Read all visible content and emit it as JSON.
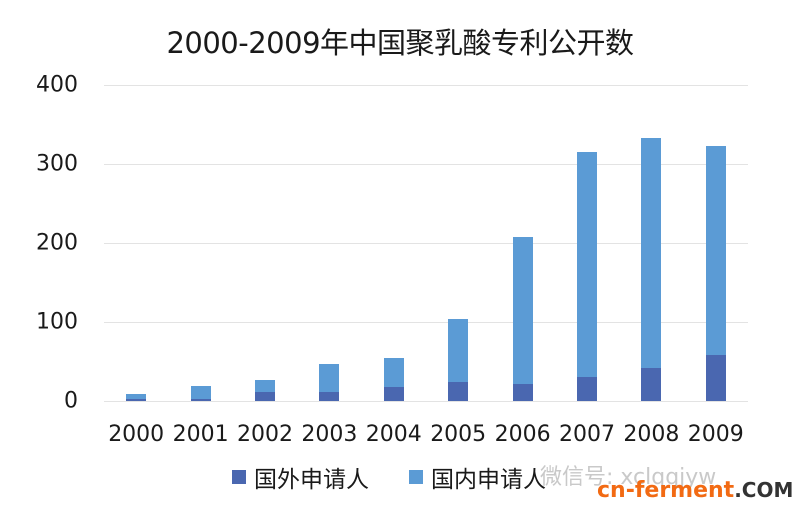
{
  "title": "2000-2009年中国聚乳酸专利公开数",
  "colors": {
    "foreign": "#4a67b0",
    "domestic": "#5b9bd5",
    "grid": "#e3e3e3",
    "watermark_orange": "#f26a13"
  },
  "legend": [
    {
      "label": "国外申请人",
      "color": "#4a67b0"
    },
    {
      "label": "国内申请人",
      "color": "#5b9bd5"
    }
  ],
  "watermark": {
    "wechat": "微信号: xclqqjyw",
    "site_main": "cn-ferment",
    "site_tld": ".COM"
  },
  "y_ticks": [
    "0",
    "100",
    "200",
    "300",
    "400"
  ],
  "chart_data": {
    "type": "bar",
    "stacked": true,
    "title": "2000-2009年中国聚乳酸专利公开数",
    "xlabel": "",
    "ylabel": "",
    "ylim": [
      0,
      400
    ],
    "yticks": [
      0,
      100,
      200,
      300,
      400
    ],
    "grid": true,
    "legend_position": "bottom",
    "categories": [
      "2000",
      "2001",
      "2002",
      "2003",
      "2004",
      "2005",
      "2006",
      "2007",
      "2008",
      "2009"
    ],
    "series": [
      {
        "name": "国外申请人",
        "values": [
          3,
          2,
          12,
          12,
          18,
          24,
          21,
          30,
          42,
          58
        ]
      },
      {
        "name": "国内申请人",
        "values": [
          6,
          17,
          15,
          35,
          36,
          80,
          187,
          285,
          291,
          265
        ]
      }
    ],
    "totals": [
      9,
      19,
      27,
      47,
      54,
      104,
      208,
      315,
      333,
      323
    ]
  }
}
